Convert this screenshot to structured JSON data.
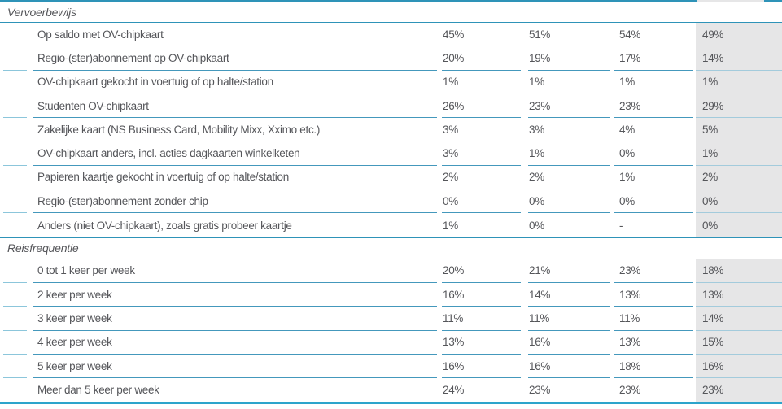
{
  "colors": {
    "line_dark": "#2e93b8",
    "line_cell": "#4498bc",
    "line_indent": "#8cc6db",
    "line_on_gray": "#a3cbdc",
    "line_bottom": "#2da4cb",
    "column_highlight_bg": "#e6e6e7",
    "text": "#55565a"
  },
  "table": {
    "sections": [
      {
        "title": "Vervoerbewijs",
        "rows": [
          {
            "label": "Op saldo met OV-chipkaart",
            "values": [
              "45%",
              "51%",
              "54%",
              "49%"
            ]
          },
          {
            "label": "Regio-(ster)abonnement op OV-chipkaart",
            "values": [
              "20%",
              "19%",
              "17%",
              "14%"
            ]
          },
          {
            "label": "OV-chipkaart gekocht in voertuig of op halte/station",
            "values": [
              "1%",
              "1%",
              "1%",
              "1%"
            ]
          },
          {
            "label": "Studenten OV-chipkaart",
            "values": [
              "26%",
              "23%",
              "23%",
              "29%"
            ]
          },
          {
            "label": "Zakelijke kaart (NS Business Card, Mobility Mixx, Xximo etc.)",
            "values": [
              "3%",
              "3%",
              "4%",
              "5%"
            ]
          },
          {
            "label": "OV-chipkaart anders, incl. acties dagkaarten winkelketen",
            "values": [
              "3%",
              "1%",
              "0%",
              "1%"
            ]
          },
          {
            "label": "Papieren kaartje gekocht in voertuig of op halte/station",
            "values": [
              "2%",
              "2%",
              "1%",
              "2%"
            ]
          },
          {
            "label": "Regio-(ster)abonnement zonder chip",
            "values": [
              "0%",
              "0%",
              "0%",
              "0%"
            ]
          },
          {
            "label": "Anders (niet OV-chipkaart), zoals gratis probeer kaartje",
            "values": [
              "1%",
              "0%",
              "-",
              "0%"
            ]
          }
        ]
      },
      {
        "title": "Reisfrequentie",
        "rows": [
          {
            "label": "0 tot 1 keer per week",
            "values": [
              "20%",
              "21%",
              "23%",
              "18%"
            ]
          },
          {
            "label": "2 keer per week",
            "values": [
              "16%",
              "14%",
              "13%",
              "13%"
            ]
          },
          {
            "label": "3 keer per week",
            "values": [
              "11%",
              "11%",
              "11%",
              "14%"
            ]
          },
          {
            "label": "4 keer per week",
            "values": [
              "13%",
              "16%",
              "13%",
              "15%"
            ]
          },
          {
            "label": "5 keer per week",
            "values": [
              "16%",
              "16%",
              "18%",
              "16%"
            ]
          },
          {
            "label": "Meer dan 5 keer per week",
            "values": [
              "24%",
              "23%",
              "23%",
              "23%"
            ]
          }
        ]
      }
    ]
  }
}
